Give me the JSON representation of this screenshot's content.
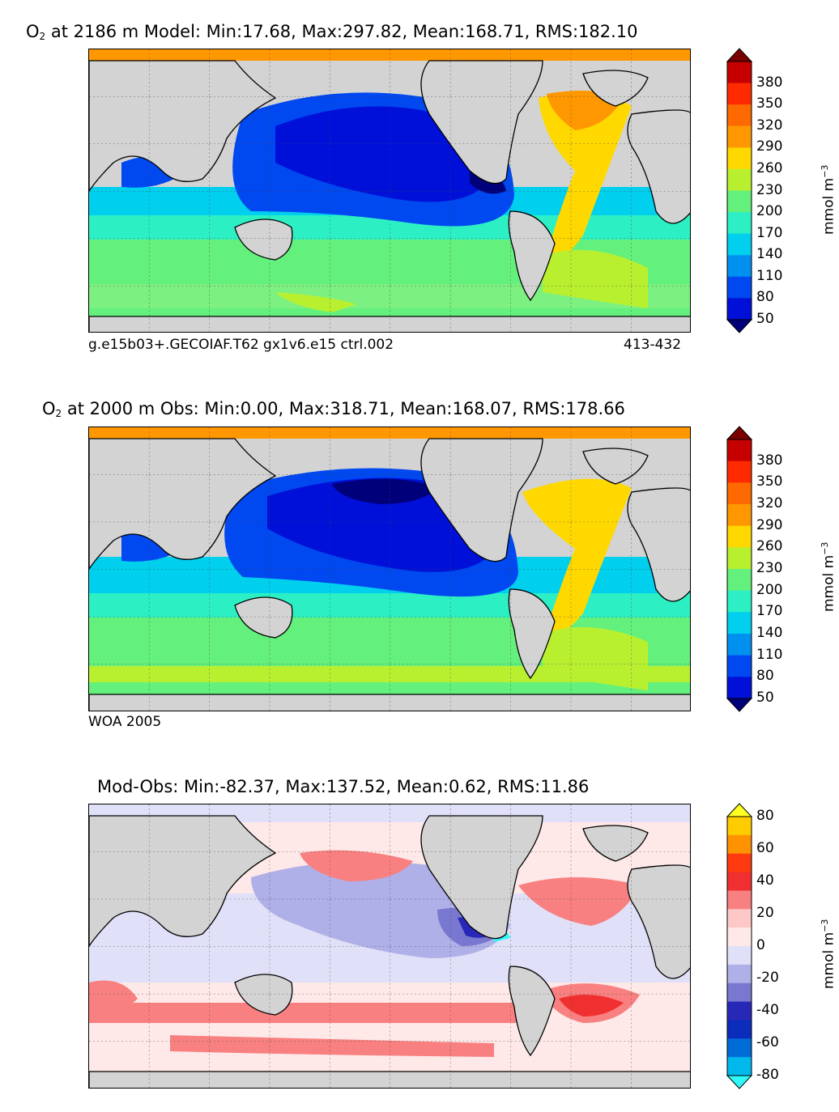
{
  "panels": [
    {
      "id": "model",
      "title_prefix": "O",
      "title_sub": "2",
      "title_rest": " at 2186 m Model: Min:17.68, Max:297.82, Mean:168.71, RMS:182.10",
      "caption_left": "g.e15b03+.GECOIAF.T62 gx1v6.e15 ctrl.002",
      "caption_right": "413-432",
      "colorbar": {
        "ticks": [
          "380",
          "350",
          "320",
          "290",
          "260",
          "230",
          "200",
          "170",
          "140",
          "110",
          "80",
          "50"
        ],
        "colors": [
          "#7a0000",
          "#c60000",
          "#ff2a00",
          "#ff6a00",
          "#ff9800",
          "#ffd800",
          "#b8f030",
          "#64f07c",
          "#2cf0c4",
          "#00cfee",
          "#0090f0",
          "#0048f0",
          "#0010d8",
          "#00007a"
        ],
        "unit": "mmol m",
        "unit_sup": "−3"
      }
    },
    {
      "id": "obs",
      "title_prefix": "O",
      "title_sub": "2",
      "title_rest": " at 2000 m Obs: Min:0.00, Max:318.71, Mean:168.07, RMS:178.66",
      "caption_left": "WOA 2005",
      "caption_right": "",
      "colorbar": {
        "ticks": [
          "380",
          "350",
          "320",
          "290",
          "260",
          "230",
          "200",
          "170",
          "140",
          "110",
          "80",
          "50"
        ],
        "colors": [
          "#7a0000",
          "#c60000",
          "#ff2a00",
          "#ff6a00",
          "#ff9800",
          "#ffd800",
          "#b8f030",
          "#64f07c",
          "#2cf0c4",
          "#00cfee",
          "#0090f0",
          "#0048f0",
          "#0010d8",
          "#00007a"
        ],
        "unit": "mmol m",
        "unit_sup": "−3"
      }
    },
    {
      "id": "diff",
      "title_prefix": "",
      "title_sub": "",
      "title_rest": "Mod-Obs: Min:-82.37, Max:137.52, Mean:0.62, RMS:11.86",
      "caption_left": "",
      "caption_right": "",
      "colorbar": {
        "ticks": [
          "80",
          "60",
          "40",
          "20",
          "0",
          "-20",
          "-40",
          "-60",
          "-80"
        ],
        "colors": [
          "#ffff20",
          "#ffcc00",
          "#ff9200",
          "#ff3a10",
          "#f03030",
          "#f88080",
          "#ffc8c8",
          "#ffe8e8",
          "#e0e0f8",
          "#b0b0e8",
          "#7878d0",
          "#2828b8",
          "#0c2cbc",
          "#006cd8",
          "#00b8ec",
          "#30f8f8"
        ],
        "unit": "mmol m",
        "unit_sup": "−3"
      }
    }
  ]
}
